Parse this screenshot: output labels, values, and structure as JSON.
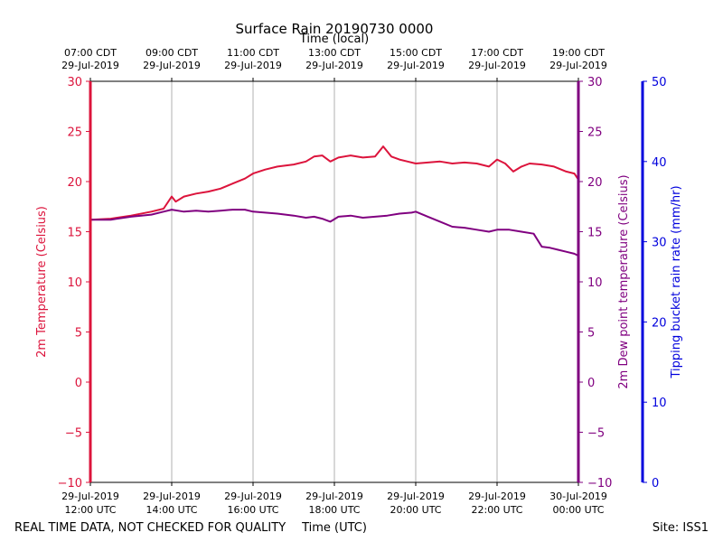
{
  "chart_data": {
    "type": "line",
    "title": "Surface Rain 20190730 0000",
    "xlabel_bottom": "Time (UTC)",
    "xlabel_top": "Time (local)",
    "ylabel_left": "2m Temperature (Celsius)",
    "ylabel_right": "2m Dew point temperature (Celsius)",
    "ylabel_far_right": "Tipping bucket rain rate (mm/hr)",
    "x_range_hours_utc": [
      12,
      24
    ],
    "ylim_left": [
      -10,
      30
    ],
    "ylim_right": [
      -10,
      30
    ],
    "ylim_far_right": [
      0,
      50
    ],
    "left_ticks": [
      -10,
      -5,
      0,
      5,
      10,
      15,
      20,
      25,
      30
    ],
    "right_ticks": [
      -10,
      -5,
      0,
      5,
      10,
      15,
      20,
      25,
      30
    ],
    "far_right_ticks": [
      0,
      10,
      20,
      30,
      40,
      50
    ],
    "grid": "vertical",
    "bottom_ticks": [
      {
        "hour": 12,
        "line1": "29-Jul-2019",
        "line2": "12:00 UTC"
      },
      {
        "hour": 14,
        "line1": "29-Jul-2019",
        "line2": "14:00 UTC"
      },
      {
        "hour": 16,
        "line1": "29-Jul-2019",
        "line2": "16:00 UTC"
      },
      {
        "hour": 18,
        "line1": "29-Jul-2019",
        "line2": "18:00 UTC"
      },
      {
        "hour": 20,
        "line1": "29-Jul-2019",
        "line2": "20:00 UTC"
      },
      {
        "hour": 22,
        "line1": "29-Jul-2019",
        "line2": "22:00 UTC"
      },
      {
        "hour": 24,
        "line1": "30-Jul-2019",
        "line2": "00:00 UTC"
      }
    ],
    "top_ticks": [
      {
        "hour": 12,
        "line1": "07:00 CDT",
        "line2": "29-Jul-2019"
      },
      {
        "hour": 14,
        "line1": "09:00 CDT",
        "line2": "29-Jul-2019"
      },
      {
        "hour": 16,
        "line1": "11:00 CDT",
        "line2": "29-Jul-2019"
      },
      {
        "hour": 18,
        "line1": "13:00 CDT",
        "line2": "29-Jul-2019"
      },
      {
        "hour": 20,
        "line1": "15:00 CDT",
        "line2": "29-Jul-2019"
      },
      {
        "hour": 22,
        "line1": "17:00 CDT",
        "line2": "29-Jul-2019"
      },
      {
        "hour": 24,
        "line1": "19:00 CDT",
        "line2": "29-Jul-2019"
      }
    ],
    "series": [
      {
        "name": "2m Temperature",
        "axis": "left",
        "color": "#dc143c",
        "x": [
          12.0,
          12.5,
          13.0,
          13.5,
          13.8,
          14.0,
          14.1,
          14.3,
          14.6,
          14.9,
          15.2,
          15.5,
          15.8,
          16.0,
          16.3,
          16.6,
          17.0,
          17.3,
          17.5,
          17.7,
          17.9,
          18.1,
          18.4,
          18.7,
          19.0,
          19.2,
          19.4,
          19.6,
          19.8,
          20.0,
          20.3,
          20.6,
          20.9,
          21.2,
          21.5,
          21.8,
          22.0,
          22.2,
          22.4,
          22.6,
          22.8,
          23.1,
          23.4,
          23.7,
          23.9,
          24.0
        ],
        "values": [
          16.2,
          16.3,
          16.6,
          17.0,
          17.3,
          18.5,
          18.0,
          18.5,
          18.8,
          19.0,
          19.3,
          19.8,
          20.3,
          20.8,
          21.2,
          21.5,
          21.7,
          22.0,
          22.5,
          22.6,
          22.0,
          22.4,
          22.6,
          22.4,
          22.5,
          23.5,
          22.5,
          22.2,
          22.0,
          21.8,
          21.9,
          22.0,
          21.8,
          21.9,
          21.8,
          21.5,
          22.2,
          21.8,
          21.0,
          21.5,
          21.8,
          21.7,
          21.5,
          21.0,
          20.8,
          20.2
        ]
      },
      {
        "name": "2m Dew point temperature",
        "axis": "right",
        "color": "#800080",
        "x": [
          12.0,
          12.5,
          13.0,
          13.5,
          13.8,
          14.0,
          14.3,
          14.6,
          14.9,
          15.2,
          15.5,
          15.8,
          16.0,
          16.3,
          16.6,
          17.0,
          17.3,
          17.5,
          17.7,
          17.9,
          18.1,
          18.4,
          18.7,
          19.0,
          19.3,
          19.6,
          19.9,
          20.0,
          20.3,
          20.6,
          20.9,
          21.2,
          21.5,
          21.8,
          22.0,
          22.3,
          22.6,
          22.9,
          23.1,
          23.3,
          23.5,
          23.7,
          23.9,
          24.0
        ],
        "values": [
          16.2,
          16.2,
          16.5,
          16.7,
          17.0,
          17.2,
          17.0,
          17.1,
          17.0,
          17.1,
          17.2,
          17.2,
          17.0,
          16.9,
          16.8,
          16.6,
          16.4,
          16.5,
          16.3,
          16.0,
          16.5,
          16.6,
          16.4,
          16.5,
          16.6,
          16.8,
          16.9,
          17.0,
          16.5,
          16.0,
          15.5,
          15.4,
          15.2,
          15.0,
          15.2,
          15.2,
          15.0,
          14.8,
          13.5,
          13.4,
          13.2,
          13.0,
          12.8,
          12.6
        ]
      }
    ]
  },
  "footer": {
    "left_note": "REAL TIME DATA, NOT CHECKED FOR QUALITY",
    "site": "Site: ISS1"
  }
}
